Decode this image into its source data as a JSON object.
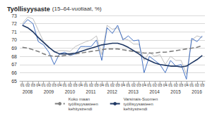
{
  "chart_data": {
    "type": "line",
    "title": "Työllisyysaste",
    "subtitle": "(15–64-vuotiaat, %)",
    "categories": [
      "01",
      "02",
      "03",
      "04",
      "01",
      "02",
      "03",
      "04",
      "01",
      "02",
      "03",
      "04",
      "01",
      "02",
      "03",
      "04",
      "01",
      "02",
      "03",
      "04",
      "01",
      "02",
      "03",
      "04",
      "01",
      "02",
      "03",
      "04",
      "01",
      "02",
      "03",
      "04",
      "01",
      "02",
      "03"
    ],
    "year_labels": [
      "2008",
      null,
      null,
      null,
      "2009",
      null,
      null,
      null,
      "2010",
      null,
      null,
      null,
      "2011",
      null,
      null,
      null,
      "2012",
      null,
      null,
      null,
      "2013",
      null,
      null,
      null,
      "2014",
      null,
      null,
      null,
      "2015",
      null,
      null,
      null,
      "2016",
      null,
      null
    ],
    "series": [
      {
        "color": "#bfbfbf",
        "line_style": "solid",
        "values": [
          72.0,
          72.8,
          72.6,
          71.2,
          69.8,
          69.2,
          68.5,
          68.7,
          68.7,
          68.6,
          69.2,
          69.5,
          69.8,
          70.0,
          70.5,
          68.2,
          71.8,
          71.3,
          71.5,
          70.2,
          70.0,
          69.5,
          69.5,
          67.5,
          68.5,
          68.0,
          68.2,
          67.0,
          68.0,
          67.5,
          67.5,
          65.8,
          70.0,
          70.5,
          70.3
        ]
      },
      {
        "color": "#4472c4",
        "line_style": "solid",
        "values": [
          71.8,
          72.5,
          72.0,
          69.8,
          69.4,
          68.5,
          67.0,
          68.3,
          68.5,
          68.1,
          68.3,
          69.2,
          69.2,
          69.2,
          70.0,
          67.5,
          71.5,
          70.8,
          71.8,
          70.0,
          70.5,
          69.9,
          70.0,
          66.0,
          68.0,
          67.5,
          67.0,
          66.0,
          67.5,
          66.8,
          67.0,
          65.2,
          70.2,
          69.8,
          70.5
        ]
      },
      {
        "name": "Koko maan\ntyöllisyysasteen\nkehitystrendi",
        "color": "#7f7f7f",
        "line_style": "dashed",
        "values": [
          69.1,
          69.0,
          68.8,
          68.6,
          68.3,
          68.1,
          68.0,
          68.0,
          68.1,
          68.2,
          68.3,
          68.4,
          68.5,
          68.6,
          68.7,
          68.8,
          68.9,
          68.9,
          68.9,
          68.8,
          68.7,
          68.6,
          68.5,
          68.4,
          68.4,
          68.4,
          68.5,
          68.5,
          68.6,
          68.7,
          68.8,
          68.9,
          69.0,
          69.1,
          69.3
        ]
      },
      {
        "name": "Varsinais-Suomen\ntyöllisyysasteen\nkehitystrendi",
        "color": "#1f3864",
        "line_style": "solid",
        "values": [
          71.8,
          71.5,
          71.0,
          70.3,
          69.7,
          69.1,
          68.6,
          68.3,
          68.3,
          68.3,
          68.4,
          68.6,
          68.8,
          69.0,
          69.2,
          69.4,
          69.5,
          69.6,
          69.6,
          69.4,
          69.1,
          68.7,
          68.3,
          67.8,
          67.5,
          67.2,
          67.0,
          66.9,
          66.8,
          66.8,
          66.7,
          66.8,
          67.2,
          67.6,
          68.1
        ]
      }
    ],
    "ylim": [
      65,
      73
    ],
    "yticks": [
      65,
      66,
      67,
      68,
      69,
      70,
      71,
      72,
      73
    ],
    "grid": true,
    "legend": "bottom"
  }
}
